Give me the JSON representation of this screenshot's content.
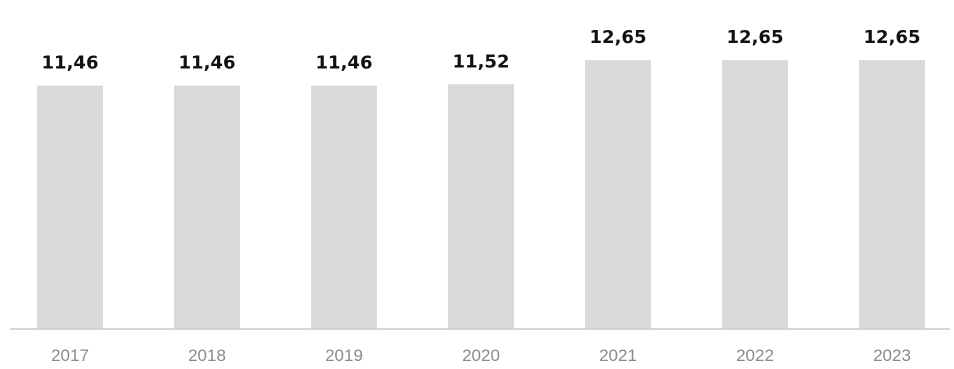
{
  "chart_data": {
    "type": "bar",
    "title": "",
    "xlabel": "",
    "ylabel": "",
    "categories": [
      "2017",
      "2018",
      "2019",
      "2020",
      "2021",
      "2022",
      "2023"
    ],
    "values": [
      11.46,
      11.46,
      11.46,
      11.52,
      12.65,
      12.65,
      12.65
    ],
    "value_labels": [
      "11,46",
      "11,46",
      "11,46",
      "11,52",
      "12,65",
      "12,65",
      "12,65"
    ],
    "grid": false,
    "legend": "none",
    "colors": {
      "bar": "#d9d9d9",
      "axis": "#cccccc",
      "value_label": "#111111",
      "tick_label": "#8a8a8a"
    }
  }
}
